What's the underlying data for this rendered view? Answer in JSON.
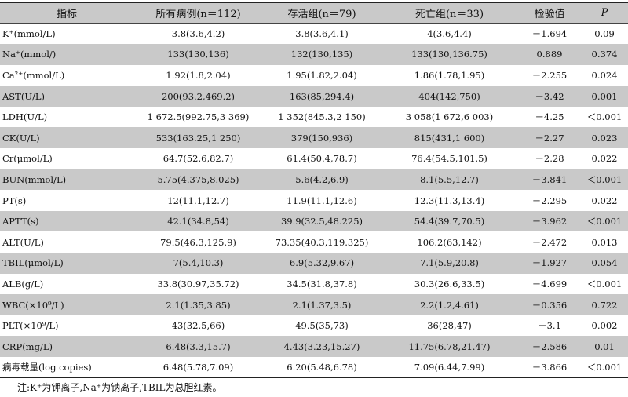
{
  "table": {
    "headers": [
      "指标",
      "所有病例(n＝112)",
      "存活组(n＝79)",
      "死亡组(n＝33)",
      "检验值",
      "P"
    ],
    "rows": [
      [
        "K⁺(mmol/L)",
        "3.8(3.6,4.2)",
        "3.8(3.6,4.1)",
        "4(3.6,4.4)",
        "－1.694",
        "0.09"
      ],
      [
        "Na⁺(mmol/)",
        "133(130,136)",
        "132(130,135)",
        "133(130,136.75)",
        "0.889",
        "0.374"
      ],
      [
        "Ca²⁺(mmol/L)",
        "1.92(1.8,2.04)",
        "1.95(1.82,2.04)",
        "1.86(1.78,1.95)",
        "－2.255",
        "0.024"
      ],
      [
        "AST(U/L)",
        "200(93.2,469.2)",
        "163(85,294.4)",
        "404(142,750)",
        "－3.42",
        "0.001"
      ],
      [
        "LDH(U/L)",
        "1 672.5(992.75,3 369)",
        "1 352(845.3,2 150)",
        "3 058(1 672,6 003)",
        "－4.25",
        "＜0.001"
      ],
      [
        "CK(U/L)",
        "533(163.25,1 250)",
        "379(150,936)",
        "815(431,1 600)",
        "－2.27",
        "0.023"
      ],
      [
        "Cr(μmol/L)",
        "64.7(52.6,82.7)",
        "61.4(50.4,78.7)",
        "76.4(54.5,101.5)",
        "－2.28",
        "0.022"
      ],
      [
        "BUN(mmol/L)",
        "5.75(4.375,8.025)",
        "5.6(4.2,6.9)",
        "8.1(5.5,12.7)",
        "－3.841",
        "＜0.001"
      ],
      [
        "PT(s)",
        "12(11.1,12.7)",
        "11.9(11.1,12.6)",
        "12.3(11.3,13.4)",
        "－2.295",
        "0.022"
      ],
      [
        "APTT(s)",
        "42.1(34.8,54)",
        "39.9(32.5,48.225)",
        "54.4(39.7,70.5)",
        "－3.962",
        "＜0.001"
      ],
      [
        "ALT(U/L)",
        "79.5(46.3,125.9)",
        "73.35(40.3,119.325)",
        "106.2(63,142)",
        "－2.472",
        "0.013"
      ],
      [
        "TBIL(μmol/L)",
        "7(5.4,10.3)",
        "6.9(5.32,9.67)",
        "7.1(5.9,20.8)",
        "－1.927",
        "0.054"
      ],
      [
        "ALB(g/L)",
        "33.8(30.97,35.72)",
        "34.5(31.8,37.8)",
        "30.3(26.6,33.5)",
        "－4.699",
        "＜0.001"
      ],
      [
        "WBC(×10⁹/L)",
        "2.1(1.35,3.85)",
        "2.1(1.37,3.5)",
        "2.2(1.2,4.61)",
        "－0.356",
        "0.722"
      ],
      [
        "PLT(×10⁹/L)",
        "43(32.5,66)",
        "49.5(35,73)",
        "36(28,47)",
        "－3.1",
        "0.002"
      ],
      [
        "CRP(mg/L)",
        "6.48(3.3,15.7)",
        "4.43(3.23,15.27)",
        "11.75(6.78,21.47)",
        "－2.586",
        "0.01"
      ],
      [
        "病毒载量(log copies)",
        "6.48(5.78,7.09)",
        "6.20(5.48,6.78)",
        "7.09(6.44,7.99)",
        "－3.866",
        "＜0.001"
      ]
    ]
  },
  "note": "注:K⁺为钾离子,Na⁺为钠离子,TBIL为总胆红素。"
}
